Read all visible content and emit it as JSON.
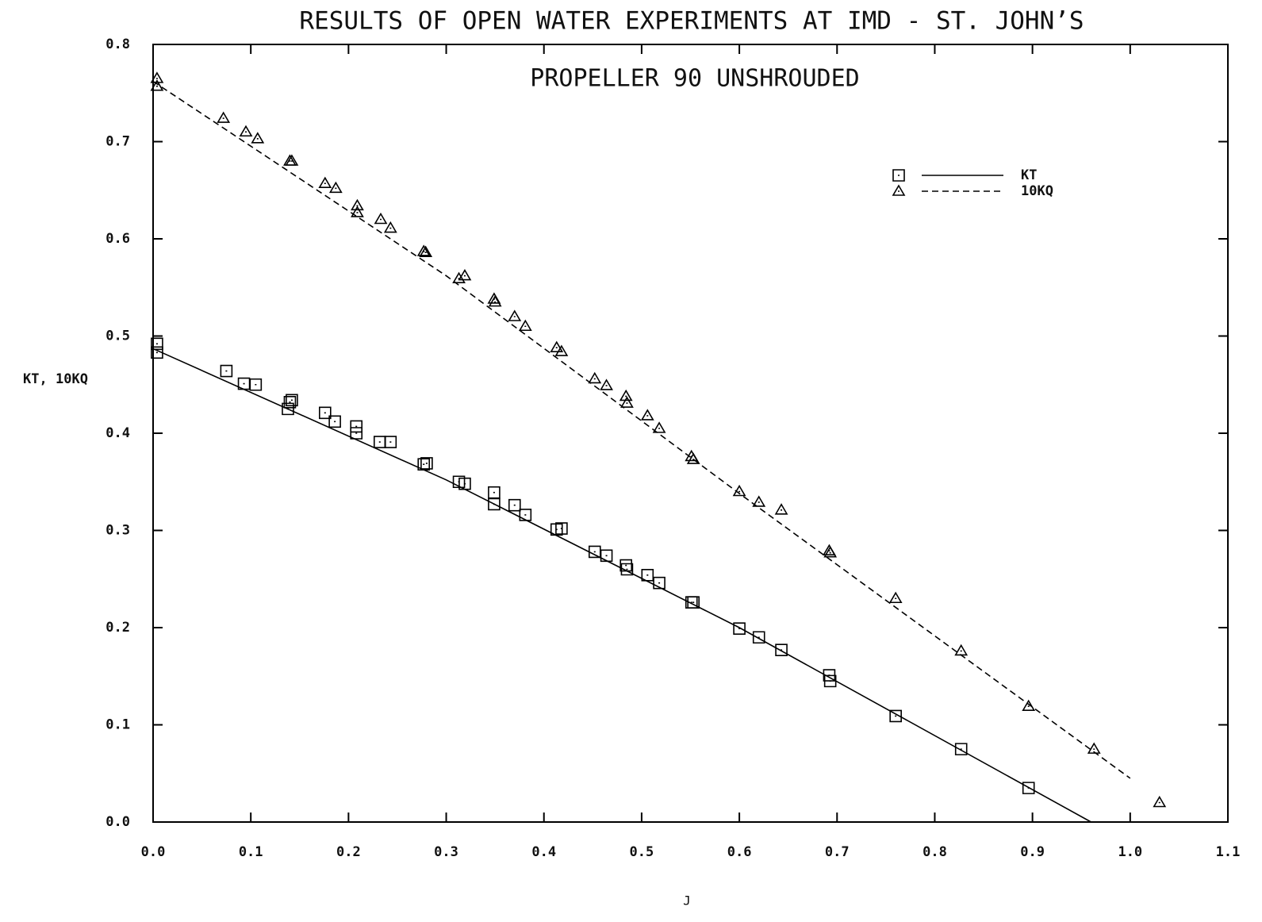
{
  "chart_data": {
    "type": "scatter",
    "title": "RESULTS OF OPEN WATER EXPERIMENTS AT IMD - ST. JOHN’S",
    "subtitle": "PROPELLER 90 UNSHROUDED",
    "xlabel": "J",
    "ylabel": "KT, 10KQ",
    "xlim": [
      0,
      1.1
    ],
    "ylim": [
      0,
      0.8
    ],
    "xticks": [
      {
        "value": 0,
        "label": "0.0"
      },
      0.1,
      0.2,
      0.3,
      0.4,
      0.5,
      0.6,
      0.7,
      0.8,
      0.9,
      {
        "value": 1,
        "label": "1.0"
      },
      1.1
    ],
    "yticks": [
      {
        "value": 0,
        "label": "0.0"
      },
      0.1,
      0.2,
      0.3,
      0.4,
      0.5,
      0.6,
      0.7,
      0.8
    ],
    "legend": "upper right",
    "series": [
      {
        "name": "KT",
        "color": "#000000",
        "marker": "square",
        "line_style": "solid",
        "x": [
          0.004,
          0.004,
          0.075,
          0.093,
          0.105,
          0.138,
          0.14,
          0.142,
          0.176,
          0.186,
          0.208,
          0.208,
          0.232,
          0.243,
          0.277,
          0.28,
          0.313,
          0.319,
          0.349,
          0.349,
          0.37,
          0.381,
          0.413,
          0.418,
          0.452,
          0.464,
          0.484,
          0.485,
          0.506,
          0.518,
          0.551,
          0.553,
          0.6,
          0.62,
          0.643,
          0.692,
          0.693,
          0.76,
          0.827,
          0.896
        ],
        "values": [
          0.492,
          0.483,
          0.464,
          0.451,
          0.45,
          0.425,
          0.432,
          0.434,
          0.421,
          0.412,
          0.407,
          0.4,
          0.391,
          0.391,
          0.368,
          0.369,
          0.35,
          0.348,
          0.339,
          0.327,
          0.326,
          0.316,
          0.301,
          0.302,
          0.278,
          0.274,
          0.264,
          0.26,
          0.254,
          0.246,
          0.226,
          0.226,
          0.199,
          0.19,
          0.177,
          0.151,
          0.145,
          0.109,
          0.075,
          0.035
        ],
        "fit": {
          "x": [
            0,
            0.3,
            0.6,
            0.96
          ],
          "y": [
            0.487,
            0.352,
            0.2,
            0
          ]
        }
      },
      {
        "name": "10KQ",
        "color": "#000000",
        "marker": "triangle",
        "line_style": "dashed",
        "x": [
          0.004,
          0.004,
          0.072,
          0.095,
          0.107,
          0.14,
          0.142,
          0.176,
          0.187,
          0.209,
          0.209,
          0.233,
          0.243,
          0.277,
          0.279,
          0.313,
          0.319,
          0.349,
          0.35,
          0.37,
          0.381,
          0.413,
          0.418,
          0.452,
          0.464,
          0.484,
          0.485,
          0.506,
          0.518,
          0.551,
          0.553,
          0.6,
          0.62,
          0.643,
          0.692,
          0.693,
          0.76,
          0.827,
          0.896,
          0.963,
          1.03
        ],
        "values": [
          0.765,
          0.757,
          0.724,
          0.71,
          0.703,
          0.68,
          0.68,
          0.657,
          0.652,
          0.634,
          0.627,
          0.62,
          0.611,
          0.587,
          0.586,
          0.559,
          0.562,
          0.538,
          0.535,
          0.52,
          0.51,
          0.488,
          0.484,
          0.456,
          0.449,
          0.438,
          0.431,
          0.418,
          0.405,
          0.376,
          0.373,
          0.34,
          0.329,
          0.321,
          0.279,
          0.277,
          0.23,
          0.176,
          0.119,
          0.075,
          0.02
        ],
        "fit": {
          "x": [
            0,
            0.3,
            0.6,
            1.0
          ],
          "y": [
            0.762,
            0.562,
            0.338,
            0.045
          ]
        }
      }
    ]
  }
}
